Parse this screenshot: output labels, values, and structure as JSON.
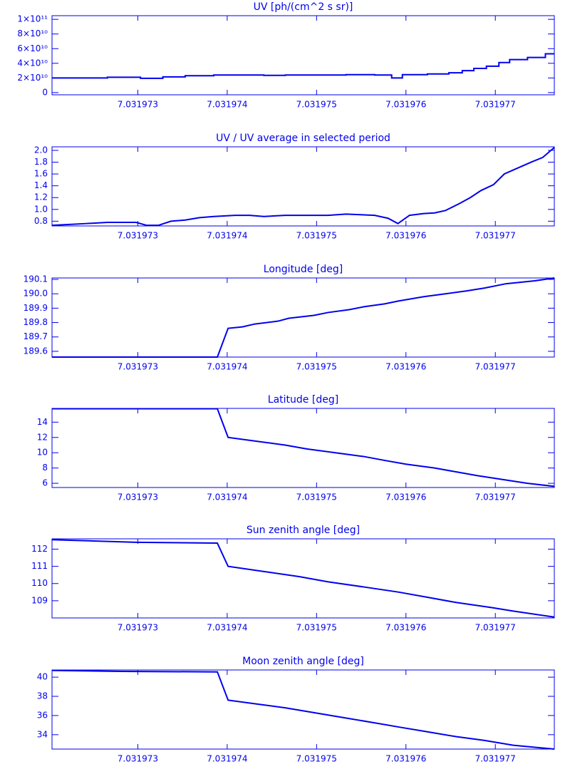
{
  "chart_data": [
    {
      "type": "line",
      "step": "post",
      "title": "UV [ph/(cm^2 s sr)]",
      "color": "#0000ee",
      "x": [
        7.03197204,
        7.03197266,
        7.03197303,
        7.03197328,
        7.03197353,
        7.03197385,
        7.03197441,
        7.03197465,
        7.03197533,
        7.03197565,
        7.03197584,
        7.03197596,
        7.03197624,
        7.03197648,
        7.03197663,
        7.03197676,
        7.0319769,
        7.03197704,
        7.03197716,
        7.03197736,
        7.03197756
      ],
      "values": [
        20000000000.0,
        21000000000.0,
        19500000000.0,
        21500000000.0,
        23000000000.0,
        24000000000.0,
        23500000000.0,
        24000000000.0,
        24500000000.0,
        24000000000.0,
        20000000000.0,
        24500000000.0,
        25500000000.0,
        27000000000.0,
        30000000000.0,
        33000000000.0,
        36000000000.0,
        41000000000.0,
        45000000000.0,
        48000000000.0,
        53000000000.0
      ],
      "xlim": [
        7.03197204,
        7.03197766
      ],
      "xticks": [
        7.031973,
        7.031974,
        7.031975,
        7.031976,
        7.031977
      ],
      "ylim": [
        -3000000000.0,
        105000000000.0
      ],
      "yticks": [
        0,
        {
          "value": 20000000000.0,
          "label": "2×10¹⁰"
        },
        {
          "value": 40000000000.0,
          "label": "4×10¹⁰"
        },
        {
          "value": 60000000000.0,
          "label": "6×10¹⁰"
        },
        {
          "value": 80000000000.0,
          "label": "8×10¹⁰"
        },
        {
          "value": 100000000000.0,
          "label": "1×10¹¹"
        }
      ]
    },
    {
      "type": "line",
      "title": "UV / UV average in selected period",
      "color": "#0000ee",
      "x": [
        7.03197204,
        7.03197242,
        7.03197266,
        7.03197298,
        7.0319731,
        7.03197323,
        7.03197337,
        7.03197353,
        7.03197369,
        7.03197385,
        7.03197409,
        7.03197425,
        7.03197441,
        7.03197465,
        7.03197513,
        7.03197533,
        7.03197565,
        7.0319758,
        7.03197591,
        7.03197604,
        7.0319762,
        7.03197632,
        7.03197644,
        7.0319766,
        7.03197672,
        7.03197684,
        7.03197698,
        7.0319771,
        7.03197722,
        7.0319774,
        7.03197753,
        7.03197766
      ],
      "values": [
        0.73,
        0.76,
        0.78,
        0.78,
        0.73,
        0.73,
        0.8,
        0.82,
        0.86,
        0.88,
        0.9,
        0.9,
        0.88,
        0.9,
        0.9,
        0.92,
        0.9,
        0.85,
        0.76,
        0.9,
        0.93,
        0.94,
        0.98,
        1.1,
        1.2,
        1.32,
        1.42,
        1.6,
        1.68,
        1.8,
        1.88,
        2.05
      ],
      "xlim": [
        7.03197204,
        7.03197766
      ],
      "xticks": [
        7.031973,
        7.031974,
        7.031975,
        7.031976,
        7.031977
      ],
      "ylim": [
        0.72,
        2.06
      ],
      "yticks": [
        0.8,
        {
          "value": 1,
          "label": "1.0"
        },
        1.2,
        1.4,
        1.6,
        1.8,
        {
          "value": 2,
          "label": "2.0"
        }
      ]
    },
    {
      "type": "line",
      "title": "Longitude [deg]",
      "color": "#0000ee",
      "x": [
        7.03197204,
        7.03197389,
        7.03197401,
        7.03197417,
        7.03197431,
        7.03197457,
        7.03197469,
        7.03197497,
        7.03197513,
        7.03197537,
        7.03197553,
        7.03197576,
        7.03197592,
        7.0319762,
        7.03197644,
        7.03197668,
        7.03197688,
        7.03197712,
        7.03197744,
        7.03197766
      ],
      "values": [
        189.56,
        189.56,
        189.76,
        189.77,
        189.79,
        189.81,
        189.83,
        189.85,
        189.87,
        189.89,
        189.91,
        189.93,
        189.95,
        189.98,
        190.0,
        190.02,
        190.04,
        190.07,
        190.09,
        190.11
      ],
      "xlim": [
        7.03197204,
        7.03197766
      ],
      "xticks": [
        7.031973,
        7.031974,
        7.031975,
        7.031976,
        7.031977
      ],
      "ylim": [
        189.56,
        190.11
      ],
      "yticks": [
        189.6,
        189.7,
        189.8,
        189.9,
        {
          "value": 190,
          "label": "190.0"
        },
        190.1
      ]
    },
    {
      "type": "line",
      "title": "Latitude [deg]",
      "color": "#0000ee",
      "x": [
        7.03197204,
        7.03197389,
        7.03197401,
        7.03197433,
        7.03197465,
        7.03197489,
        7.03197521,
        7.03197553,
        7.03197576,
        7.031976,
        7.03197632,
        7.03197656,
        7.0319768,
        7.03197708,
        7.03197736,
        7.03197766
      ],
      "values": [
        15.75,
        15.75,
        12.0,
        11.5,
        11.0,
        10.5,
        10.0,
        9.5,
        9.0,
        8.5,
        8.0,
        7.5,
        7.0,
        6.5,
        6.0,
        5.6
      ],
      "xlim": [
        7.03197204,
        7.03197766
      ],
      "xticks": [
        7.031973,
        7.031974,
        7.031975,
        7.031976,
        7.031977
      ],
      "ylim": [
        5.45,
        15.8
      ],
      "yticks": [
        6,
        8,
        10,
        12,
        14
      ]
    },
    {
      "type": "line",
      "title": "Sun zenith angle [deg]",
      "color": "#0000ee",
      "x": [
        7.03197204,
        7.03197298,
        7.03197389,
        7.03197401,
        7.03197441,
        7.03197481,
        7.03197513,
        7.03197553,
        7.03197592,
        7.03197624,
        7.03197656,
        7.03197696,
        7.0319772,
        7.03197766
      ],
      "values": [
        112.55,
        112.4,
        112.35,
        111.0,
        110.7,
        110.4,
        110.1,
        109.8,
        109.5,
        109.2,
        108.9,
        108.6,
        108.4,
        108.05
      ],
      "xlim": [
        7.03197204,
        7.03197766
      ],
      "xticks": [
        7.031973,
        7.031974,
        7.031975,
        7.031976,
        7.031977
      ],
      "ylim": [
        108.0,
        112.6
      ],
      "yticks": [
        109,
        110,
        111,
        112
      ]
    },
    {
      "type": "line",
      "title": "Moon zenith angle [deg]",
      "color": "#0000ee",
      "x": [
        7.03197204,
        7.03197282,
        7.03197389,
        7.03197401,
        7.03197433,
        7.03197465,
        7.03197497,
        7.03197529,
        7.03197561,
        7.03197592,
        7.03197624,
        7.03197656,
        7.03197688,
        7.0319772,
        7.03197766
      ],
      "values": [
        40.7,
        40.6,
        40.55,
        37.6,
        37.2,
        36.8,
        36.3,
        35.8,
        35.3,
        34.8,
        34.3,
        33.8,
        33.4,
        32.9,
        32.5
      ],
      "xlim": [
        7.03197204,
        7.03197766
      ],
      "xticks": [
        7.031973,
        7.031974,
        7.031975,
        7.031976,
        7.031977
      ],
      "ylim": [
        32.5,
        40.75
      ],
      "yticks": [
        34,
        36,
        38,
        40
      ]
    }
  ]
}
